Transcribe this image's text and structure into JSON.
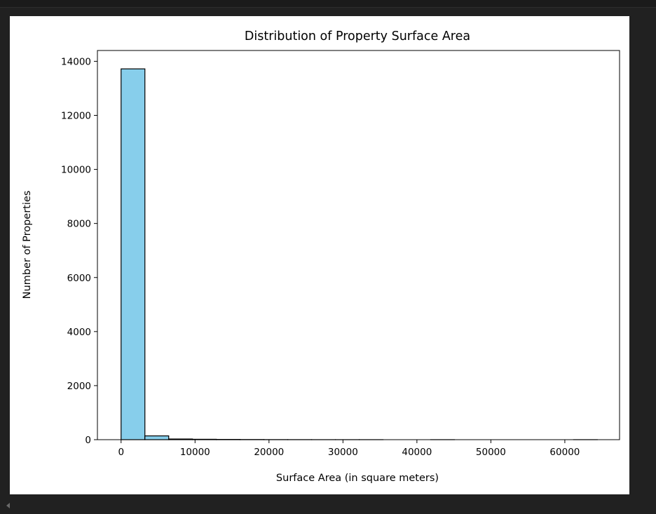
{
  "chart_data": {
    "type": "bar",
    "subtype": "histogram",
    "title": "Distribution of Property Surface Area",
    "xlabel": "Surface Area (in square meters)",
    "ylabel": "Number of Properties",
    "xlim": [
      -3200,
      67400
    ],
    "ylim": [
      0,
      14400
    ],
    "x_ticks": [
      0,
      10000,
      20000,
      30000,
      40000,
      50000,
      60000
    ],
    "y_ticks": [
      0,
      2000,
      4000,
      6000,
      8000,
      10000,
      12000,
      14000
    ],
    "bin_edges": [
      0,
      3220,
      6440,
      9660,
      12880,
      16100,
      19320,
      22540,
      25760,
      28980,
      32200,
      35420,
      38640,
      41860,
      45080,
      48300,
      51520,
      54740,
      57960,
      61180,
      64400
    ],
    "values": [
      13720,
      140,
      25,
      15,
      10,
      6,
      3,
      2,
      1,
      1,
      1,
      0,
      0,
      1,
      0,
      0,
      0,
      0,
      0,
      1
    ],
    "bar_color": "#87ceeb",
    "edge_color": "#000000",
    "grid": false,
    "legend": "none"
  }
}
